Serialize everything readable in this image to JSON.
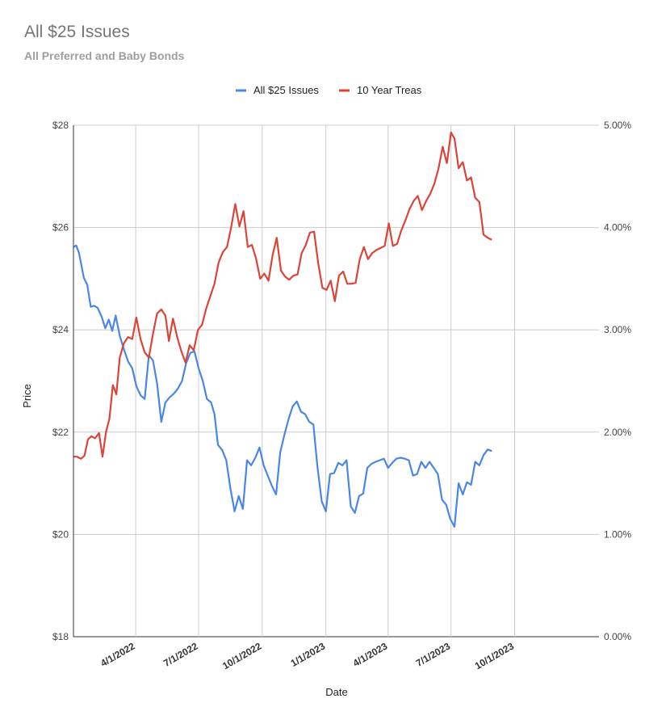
{
  "chart_data": {
    "type": "line",
    "title": "All $25 Issues",
    "subtitle": "All Preferred and Baby Bonds",
    "xlabel": "Date",
    "ylabel": "Price",
    "x_start": "2022-01-01",
    "x_end": "2024-01-31",
    "ylim_left": [
      18,
      28
    ],
    "ylim_right": [
      0,
      5
    ],
    "left_ticks": [
      "$18",
      "$20",
      "$22",
      "$24",
      "$26",
      "$28"
    ],
    "right_ticks": [
      "0.00%",
      "1.00%",
      "2.00%",
      "3.00%",
      "4.00%",
      "5.00%"
    ],
    "x_ticks": [
      {
        "date": "2022-04-01",
        "label": "4/1/2022"
      },
      {
        "date": "2022-07-01",
        "label": "7/1/2022"
      },
      {
        "date": "2022-10-01",
        "label": "10/1/2022"
      },
      {
        "date": "2023-01-01",
        "label": "1/1/2023"
      },
      {
        "date": "2023-04-01",
        "label": "4/1/2023"
      },
      {
        "date": "2023-07-01",
        "label": "7/1/2023"
      },
      {
        "date": "2023-10-01",
        "label": "10/1/2023"
      }
    ],
    "grid": true,
    "legend_position": "top",
    "series": [
      {
        "name": "All $25 Issues",
        "axis": "left",
        "color": "#4a86e8",
        "points": [
          [
            "2022-01-01",
            25.62
          ],
          [
            "2022-01-05",
            25.65
          ],
          [
            "2022-01-09",
            25.5
          ],
          [
            "2022-01-16",
            25.02
          ],
          [
            "2022-01-21",
            24.88
          ],
          [
            "2022-01-26",
            24.45
          ],
          [
            "2022-01-31",
            24.47
          ],
          [
            "2022-02-05",
            24.43
          ],
          [
            "2022-02-11",
            24.25
          ],
          [
            "2022-02-16",
            24.03
          ],
          [
            "2022-02-21",
            24.2
          ],
          [
            "2022-02-26",
            23.98
          ],
          [
            "2022-03-03",
            24.28
          ],
          [
            "2022-03-09",
            23.88
          ],
          [
            "2022-03-15",
            23.62
          ],
          [
            "2022-03-21",
            23.38
          ],
          [
            "2022-03-27",
            23.25
          ],
          [
            "2022-04-02",
            22.9
          ],
          [
            "2022-04-08",
            22.72
          ],
          [
            "2022-04-14",
            22.65
          ],
          [
            "2022-04-20",
            23.5
          ],
          [
            "2022-04-26",
            23.4
          ],
          [
            "2022-05-02",
            22.95
          ],
          [
            "2022-05-08",
            22.2
          ],
          [
            "2022-05-14",
            22.58
          ],
          [
            "2022-05-20",
            22.68
          ],
          [
            "2022-05-26",
            22.75
          ],
          [
            "2022-06-01",
            22.85
          ],
          [
            "2022-06-07",
            23.0
          ],
          [
            "2022-06-13",
            23.35
          ],
          [
            "2022-06-19",
            23.55
          ],
          [
            "2022-06-25",
            23.58
          ],
          [
            "2022-07-01",
            23.25
          ],
          [
            "2022-07-07",
            23.0
          ],
          [
            "2022-07-13",
            22.65
          ],
          [
            "2022-07-19",
            22.58
          ],
          [
            "2022-07-24",
            22.35
          ],
          [
            "2022-07-29",
            21.75
          ],
          [
            "2022-08-04",
            21.65
          ],
          [
            "2022-08-10",
            21.45
          ],
          [
            "2022-08-16",
            20.9
          ],
          [
            "2022-08-22",
            20.45
          ],
          [
            "2022-08-28",
            20.75
          ],
          [
            "2022-09-03",
            20.5
          ],
          [
            "2022-09-09",
            21.45
          ],
          [
            "2022-09-15",
            21.35
          ],
          [
            "2022-09-21",
            21.5
          ],
          [
            "2022-09-27",
            21.7
          ],
          [
            "2022-10-03",
            21.35
          ],
          [
            "2022-10-09",
            21.15
          ],
          [
            "2022-10-15",
            20.95
          ],
          [
            "2022-10-21",
            20.78
          ],
          [
            "2022-10-27",
            21.6
          ],
          [
            "2022-11-02",
            21.95
          ],
          [
            "2022-11-08",
            22.25
          ],
          [
            "2022-11-14",
            22.5
          ],
          [
            "2022-11-20",
            22.6
          ],
          [
            "2022-11-26",
            22.4
          ],
          [
            "2022-12-02",
            22.35
          ],
          [
            "2022-12-08",
            22.2
          ],
          [
            "2022-12-14",
            22.15
          ],
          [
            "2022-12-20",
            21.3
          ],
          [
            "2022-12-26",
            20.65
          ],
          [
            "2023-01-01",
            20.45
          ],
          [
            "2023-01-07",
            21.18
          ],
          [
            "2023-01-13",
            21.2
          ],
          [
            "2023-01-19",
            21.4
          ],
          [
            "2023-01-25",
            21.35
          ],
          [
            "2023-01-31",
            21.45
          ],
          [
            "2023-02-06",
            20.55
          ],
          [
            "2023-02-12",
            20.42
          ],
          [
            "2023-02-18",
            20.75
          ],
          [
            "2023-02-24",
            20.8
          ],
          [
            "2023-03-02",
            21.3
          ],
          [
            "2023-03-08",
            21.38
          ],
          [
            "2023-03-14",
            21.42
          ],
          [
            "2023-03-20",
            21.45
          ],
          [
            "2023-03-26",
            21.48
          ],
          [
            "2023-04-01",
            21.3
          ],
          [
            "2023-04-07",
            21.4
          ],
          [
            "2023-04-13",
            21.48
          ],
          [
            "2023-04-19",
            21.5
          ],
          [
            "2023-04-25",
            21.48
          ],
          [
            "2023-05-01",
            21.45
          ],
          [
            "2023-05-07",
            21.15
          ],
          [
            "2023-05-13",
            21.18
          ],
          [
            "2023-05-19",
            21.42
          ],
          [
            "2023-05-25",
            21.3
          ],
          [
            "2023-05-31",
            21.42
          ],
          [
            "2023-06-06",
            21.3
          ],
          [
            "2023-06-12",
            21.18
          ],
          [
            "2023-06-18",
            20.68
          ],
          [
            "2023-06-24",
            20.58
          ],
          [
            "2023-06-30",
            20.3
          ],
          [
            "2023-07-06",
            20.15
          ],
          [
            "2023-07-12",
            21.0
          ],
          [
            "2023-07-18",
            20.78
          ],
          [
            "2023-07-24",
            21.02
          ],
          [
            "2023-07-30",
            20.97
          ],
          [
            "2023-08-05",
            21.42
          ],
          [
            "2023-08-11",
            21.35
          ],
          [
            "2023-08-17",
            21.55
          ],
          [
            "2023-08-23",
            21.66
          ],
          [
            "2023-08-29",
            21.63
          ]
        ]
      },
      {
        "name": "10 Year Treas",
        "axis": "right",
        "color": "#db4437",
        "points": [
          [
            "2022-01-01",
            1.76
          ],
          [
            "2022-01-06",
            1.76
          ],
          [
            "2022-01-12",
            1.74
          ],
          [
            "2022-01-17",
            1.77
          ],
          [
            "2022-01-22",
            1.93
          ],
          [
            "2022-01-27",
            1.96
          ],
          [
            "2022-02-01",
            1.94
          ],
          [
            "2022-02-07",
            1.99
          ],
          [
            "2022-02-12",
            1.76
          ],
          [
            "2022-02-17",
            2.0
          ],
          [
            "2022-02-22",
            2.13
          ],
          [
            "2022-02-27",
            2.46
          ],
          [
            "2022-03-04",
            2.37
          ],
          [
            "2022-03-09",
            2.73
          ],
          [
            "2022-03-15",
            2.87
          ],
          [
            "2022-03-21",
            2.93
          ],
          [
            "2022-03-27",
            2.91
          ],
          [
            "2022-04-02",
            3.12
          ],
          [
            "2022-04-08",
            2.91
          ],
          [
            "2022-04-14",
            2.78
          ],
          [
            "2022-04-20",
            2.73
          ],
          [
            "2022-04-26",
            2.96
          ],
          [
            "2022-05-02",
            3.16
          ],
          [
            "2022-05-08",
            3.2
          ],
          [
            "2022-05-14",
            3.14
          ],
          [
            "2022-05-19",
            2.89
          ],
          [
            "2022-05-25",
            3.11
          ],
          [
            "2022-05-31",
            2.93
          ],
          [
            "2022-06-06",
            2.79
          ],
          [
            "2022-06-12",
            2.68
          ],
          [
            "2022-06-18",
            2.85
          ],
          [
            "2022-06-24",
            2.8
          ],
          [
            "2022-06-30",
            3.0
          ],
          [
            "2022-07-06",
            3.05
          ],
          [
            "2022-07-12",
            3.21
          ],
          [
            "2022-07-18",
            3.33
          ],
          [
            "2022-07-24",
            3.45
          ],
          [
            "2022-07-30",
            3.66
          ],
          [
            "2022-08-05",
            3.76
          ],
          [
            "2022-08-11",
            3.81
          ],
          [
            "2022-08-17",
            4.0
          ],
          [
            "2022-08-23",
            4.23
          ],
          [
            "2022-08-29",
            4.01
          ],
          [
            "2022-09-04",
            4.16
          ],
          [
            "2022-09-10",
            3.81
          ],
          [
            "2022-09-16",
            3.83
          ],
          [
            "2022-09-22",
            3.7
          ],
          [
            "2022-09-28",
            3.5
          ],
          [
            "2022-10-04",
            3.55
          ],
          [
            "2022-10-10",
            3.48
          ],
          [
            "2022-10-16",
            3.73
          ],
          [
            "2022-10-22",
            3.9
          ],
          [
            "2022-10-28",
            3.58
          ],
          [
            "2022-11-03",
            3.52
          ],
          [
            "2022-11-09",
            3.49
          ],
          [
            "2022-11-15",
            3.53
          ],
          [
            "2022-11-21",
            3.54
          ],
          [
            "2022-11-27",
            3.75
          ],
          [
            "2022-12-03",
            3.83
          ],
          [
            "2022-12-09",
            3.95
          ],
          [
            "2022-12-15",
            3.96
          ],
          [
            "2022-12-21",
            3.65
          ],
          [
            "2022-12-27",
            3.41
          ],
          [
            "2023-01-02",
            3.39
          ],
          [
            "2023-01-08",
            3.48
          ],
          [
            "2023-01-14",
            3.28
          ],
          [
            "2023-01-20",
            3.53
          ],
          [
            "2023-01-26",
            3.57
          ],
          [
            "2023-02-01",
            3.45
          ],
          [
            "2023-02-07",
            3.45
          ],
          [
            "2023-02-13",
            3.46
          ],
          [
            "2023-02-19",
            3.69
          ],
          [
            "2023-02-25",
            3.81
          ],
          [
            "2023-03-03",
            3.69
          ],
          [
            "2023-03-09",
            3.75
          ],
          [
            "2023-03-15",
            3.78
          ],
          [
            "2023-03-21",
            3.8
          ],
          [
            "2023-03-27",
            3.82
          ],
          [
            "2023-04-02",
            4.04
          ],
          [
            "2023-04-08",
            3.82
          ],
          [
            "2023-04-14",
            3.84
          ],
          [
            "2023-04-20",
            3.97
          ],
          [
            "2023-04-26",
            4.07
          ],
          [
            "2023-05-02",
            4.18
          ],
          [
            "2023-05-08",
            4.26
          ],
          [
            "2023-05-14",
            4.31
          ],
          [
            "2023-05-20",
            4.17
          ],
          [
            "2023-05-26",
            4.26
          ],
          [
            "2023-06-01",
            4.33
          ],
          [
            "2023-06-07",
            4.43
          ],
          [
            "2023-06-13",
            4.58
          ],
          [
            "2023-06-19",
            4.79
          ],
          [
            "2023-06-25",
            4.63
          ],
          [
            "2023-07-01",
            4.93
          ],
          [
            "2023-07-06",
            4.87
          ],
          [
            "2023-07-12",
            4.58
          ],
          [
            "2023-07-18",
            4.64
          ],
          [
            "2023-07-24",
            4.46
          ],
          [
            "2023-07-30",
            4.49
          ],
          [
            "2023-08-05",
            4.29
          ],
          [
            "2023-08-11",
            4.25
          ],
          [
            "2023-08-17",
            3.93
          ],
          [
            "2023-08-23",
            3.9
          ],
          [
            "2023-08-29",
            3.88
          ]
        ]
      }
    ]
  }
}
